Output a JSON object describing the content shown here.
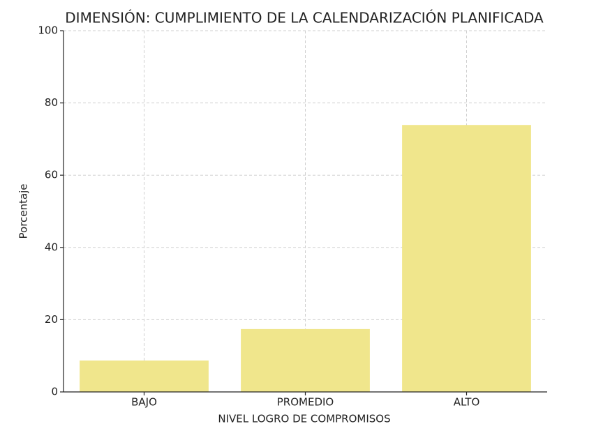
{
  "chart_data": {
    "type": "bar",
    "title": "DIMENSIÓN: CUMPLIMIENTO DE LA CALENDARIZACIÓN PLANIFICADA",
    "x_label": "NIVEL LOGRO DE COMPROMISOS",
    "y_label": "Porcentaje",
    "categories": [
      "BAJO",
      "PROMEDIO",
      "ALTO"
    ],
    "values": [
      8.7,
      17.4,
      73.9
    ],
    "color": "#f0e68c",
    "ylim": [
      0,
      100
    ],
    "yticks": [
      0,
      20,
      40,
      60,
      80,
      100
    ],
    "grid": true
  }
}
